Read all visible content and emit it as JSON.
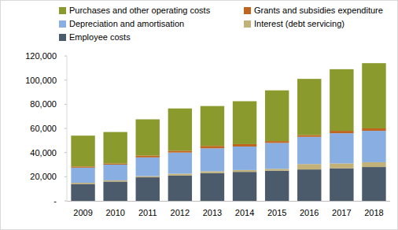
{
  "chart_data": {
    "type": "bar",
    "stacked": true,
    "legend": "top",
    "grid": false,
    "categories": [
      "2009",
      "2010",
      "2011",
      "2012",
      "2013",
      "2014",
      "2015",
      "2016",
      "2017",
      "2018"
    ],
    "series": [
      {
        "name": "Employee costs",
        "color": "#4b5b6b",
        "values": [
          14000,
          16000,
          19500,
          21000,
          23000,
          24000,
          25000,
          26000,
          27000,
          28000
        ]
      },
      {
        "name": "Interest (debt servicing)",
        "color": "#c2b27a",
        "values": [
          1000,
          1000,
          1000,
          1500,
          1500,
          1500,
          1500,
          4500,
          4000,
          4000
        ]
      },
      {
        "name": "Depreciation and amortisation",
        "color": "#88aee2",
        "values": [
          12500,
          13000,
          15500,
          17500,
          19000,
          19500,
          21500,
          22500,
          25000,
          26000
        ]
      },
      {
        "name": "Grants and subsidies expenditure",
        "color": "#c0651f",
        "values": [
          1000,
          1000,
          1500,
          1500,
          2000,
          2000,
          1500,
          1500,
          2000,
          2000
        ]
      },
      {
        "name": "Purchases and other operating costs",
        "color": "#8a9a2c",
        "values": [
          25500,
          26000,
          30000,
          35000,
          33000,
          35500,
          42000,
          46500,
          51000,
          54000
        ]
      }
    ],
    "ylim": [
      0,
      120000
    ],
    "yticks": [
      {
        "value": 0,
        "label": "-"
      },
      {
        "value": 20000,
        "label": "20,000"
      },
      {
        "value": 40000,
        "label": "40,000"
      },
      {
        "value": 60000,
        "label": "60,000"
      },
      {
        "value": 80000,
        "label": "80,000"
      },
      {
        "value": 100000,
        "label": "100,000"
      },
      {
        "value": 120000,
        "label": "120,000"
      }
    ]
  }
}
